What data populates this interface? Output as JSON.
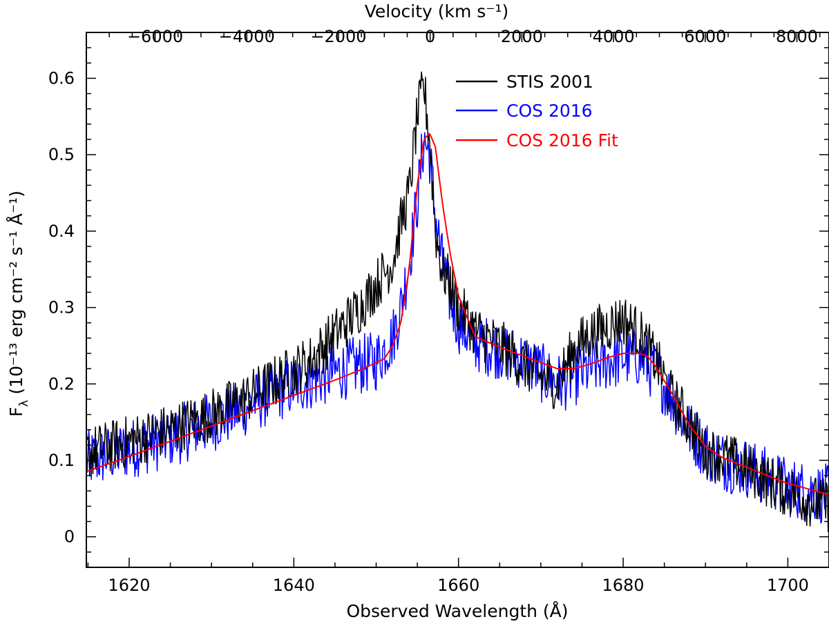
{
  "chart_data": {
    "type": "line",
    "title": "",
    "xlabel": "Observed Wavelength (Å)",
    "ylabel_main": "F",
    "ylabel_sub": "λ",
    "ylabel_rest": " (10⁻¹³ erg cm⁻² s⁻¹ Å⁻¹)",
    "top_axis_label": "Velocity (km s⁻¹)",
    "xlim": [
      1614.8,
      1705.0
    ],
    "ylim": [
      -0.04,
      0.66
    ],
    "top_xlim": [
      -7500,
      8700
    ],
    "x_ticks": [
      1620,
      1640,
      1660,
      1680,
      1700
    ],
    "x_tick_labels": [
      "1620",
      "1640",
      "1660",
      "1680",
      "1700"
    ],
    "y_ticks": [
      0,
      0.1,
      0.2,
      0.3,
      0.4,
      0.5,
      0.6
    ],
    "y_tick_labels": [
      "0",
      "0.1",
      "0.2",
      "0.3",
      "0.4",
      "0.5",
      "0.6"
    ],
    "top_ticks": [
      -6000,
      -4000,
      -2000,
      0,
      2000,
      4000,
      6000,
      8000
    ],
    "top_tick_labels": [
      "−6000",
      "−4000",
      "−2000",
      "0",
      "2000",
      "4000",
      "6000",
      "8000"
    ],
    "legend_position": "top-center",
    "series": [
      {
        "name": "STIS 2001",
        "color": "#000000",
        "x": [
          1615,
          1620,
          1625,
          1630,
          1634,
          1638,
          1642,
          1645,
          1648,
          1650,
          1652,
          1653,
          1654,
          1655,
          1655.8,
          1656.5,
          1657.2,
          1658,
          1659,
          1660,
          1662,
          1665,
          1668,
          1670,
          1672,
          1674,
          1676,
          1678,
          1680,
          1682,
          1684,
          1686,
          1688,
          1690,
          1692,
          1695,
          1698,
          1700,
          1702,
          1705
        ],
        "y": [
          0.11,
          0.125,
          0.14,
          0.16,
          0.18,
          0.205,
          0.23,
          0.265,
          0.3,
          0.33,
          0.36,
          0.41,
          0.45,
          0.55,
          0.59,
          0.52,
          0.4,
          0.35,
          0.33,
          0.3,
          0.27,
          0.25,
          0.225,
          0.21,
          0.2,
          0.245,
          0.265,
          0.275,
          0.285,
          0.265,
          0.23,
          0.18,
          0.15,
          0.11,
          0.105,
          0.09,
          0.07,
          0.06,
          0.05,
          0.04
        ]
      },
      {
        "name": "COS 2016",
        "color": "#0000ff",
        "x": [
          1615,
          1620,
          1625,
          1630,
          1634,
          1638,
          1642,
          1645,
          1648,
          1650,
          1652,
          1653,
          1654,
          1655,
          1655.8,
          1656.5,
          1657.2,
          1658,
          1659,
          1660,
          1662,
          1665,
          1668,
          1670,
          1672,
          1674,
          1676,
          1678,
          1680,
          1682,
          1684,
          1686,
          1688,
          1690,
          1692,
          1695,
          1698,
          1700,
          1702,
          1705
        ],
        "y": [
          0.1,
          0.115,
          0.13,
          0.15,
          0.17,
          0.19,
          0.205,
          0.215,
          0.225,
          0.23,
          0.26,
          0.3,
          0.36,
          0.44,
          0.52,
          0.5,
          0.42,
          0.36,
          0.31,
          0.28,
          0.255,
          0.245,
          0.23,
          0.215,
          0.2,
          0.21,
          0.22,
          0.23,
          0.235,
          0.235,
          0.215,
          0.18,
          0.14,
          0.115,
          0.1,
          0.09,
          0.075,
          0.065,
          0.06,
          0.055
        ]
      },
      {
        "name": "COS 2016 Fit",
        "color": "#ff0000",
        "x": [
          1615,
          1620,
          1625,
          1630,
          1635,
          1640,
          1645,
          1648,
          1650,
          1651,
          1652,
          1653,
          1654,
          1655,
          1655.8,
          1656.5,
          1657.2,
          1658,
          1659,
          1660,
          1662,
          1665,
          1668,
          1670,
          1672,
          1674,
          1676,
          1678,
          1680,
          1682,
          1683,
          1684,
          1686,
          1688,
          1690,
          1692,
          1695,
          1698,
          1700,
          1702,
          1705
        ],
        "y": [
          0.086,
          0.105,
          0.125,
          0.145,
          0.165,
          0.185,
          0.205,
          0.218,
          0.228,
          0.233,
          0.25,
          0.28,
          0.35,
          0.46,
          0.52,
          0.528,
          0.51,
          0.44,
          0.37,
          0.315,
          0.262,
          0.248,
          0.236,
          0.228,
          0.22,
          0.22,
          0.226,
          0.234,
          0.24,
          0.24,
          0.236,
          0.222,
          0.186,
          0.147,
          0.118,
          0.104,
          0.091,
          0.078,
          0.07,
          0.064,
          0.055
        ]
      }
    ]
  }
}
